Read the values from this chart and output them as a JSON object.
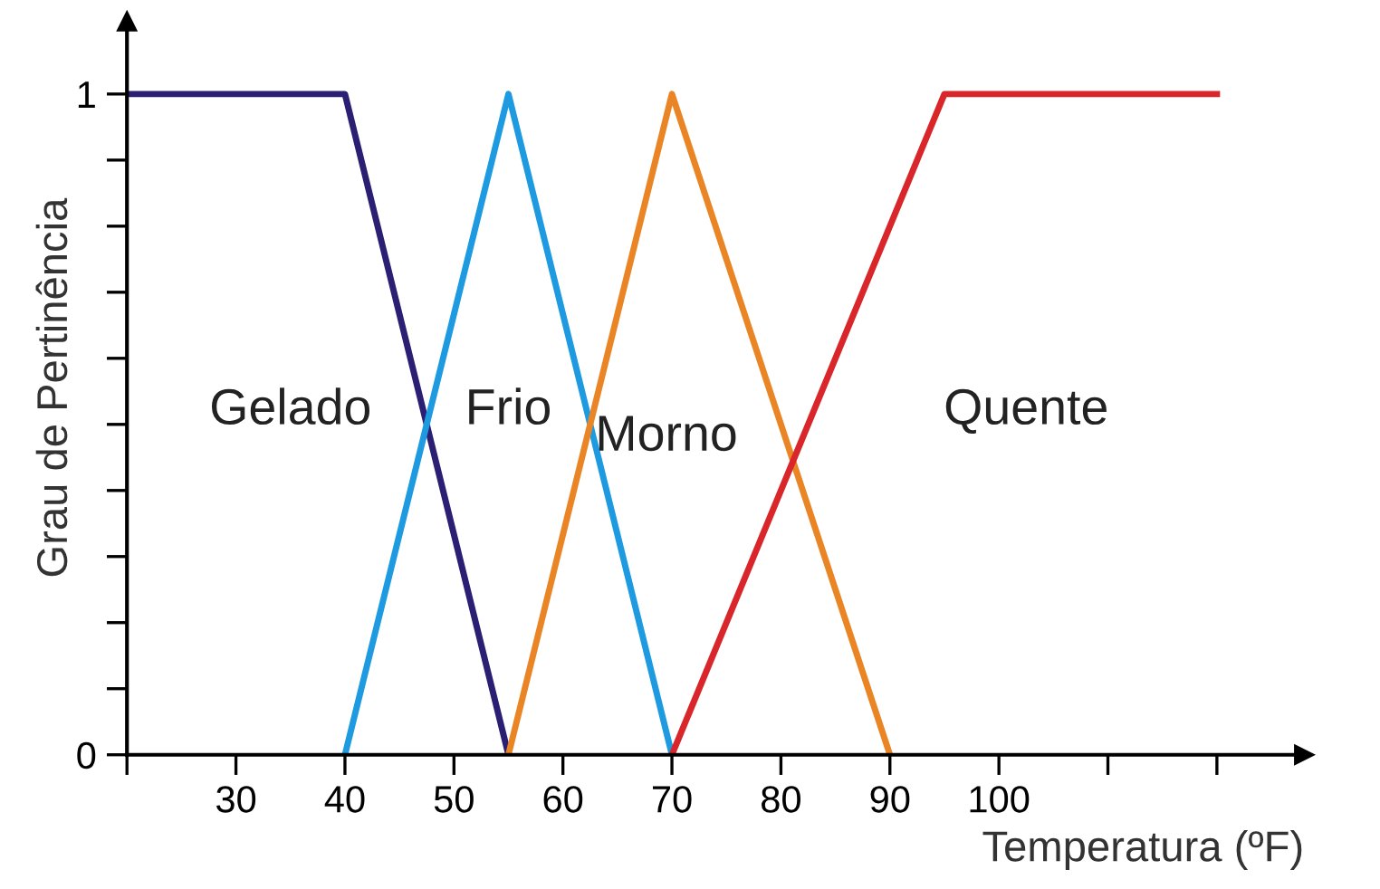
{
  "chart_data": {
    "type": "line",
    "xlabel": "Temperatura (ºF)",
    "ylabel": "Grau de Pertinência",
    "series": [
      {
        "name": "Gelado",
        "color": "#2b1f73",
        "x": [
          20,
          40,
          55
        ],
        "values": [
          1,
          1,
          0
        ]
      },
      {
        "name": "Frio",
        "color": "#1e9be0",
        "x": [
          40,
          55,
          70
        ],
        "values": [
          0,
          1,
          0
        ]
      },
      {
        "name": "Morno",
        "color": "#ea8526",
        "x": [
          55,
          70,
          90
        ],
        "values": [
          0,
          1,
          0
        ]
      },
      {
        "name": "Quente",
        "color": "#d8262a",
        "x": [
          70,
          95,
          120
        ],
        "values": [
          0,
          1,
          1
        ]
      }
    ],
    "xlim": [
      20,
      128
    ],
    "ylim": [
      0,
      1.11
    ],
    "xticks": [
      {
        "value": 20,
        "label": null
      },
      30,
      40,
      50,
      60,
      70,
      80,
      90,
      100,
      {
        "value": 110,
        "label": null
      },
      {
        "value": 120,
        "label": null
      }
    ],
    "yticks": [
      0,
      {
        "value": 0.1,
        "label": null
      },
      {
        "value": 0.2,
        "label": null
      },
      {
        "value": 0.3,
        "label": null
      },
      {
        "value": 0.4,
        "label": null
      },
      {
        "value": 0.5,
        "label": null
      },
      {
        "value": 0.6,
        "label": null
      },
      {
        "value": 0.7,
        "label": null
      },
      {
        "value": 0.8,
        "label": null
      },
      {
        "value": 0.9,
        "label": null
      },
      1
    ],
    "grid": false,
    "legend": false,
    "marker": "none",
    "line_style": "solid"
  }
}
